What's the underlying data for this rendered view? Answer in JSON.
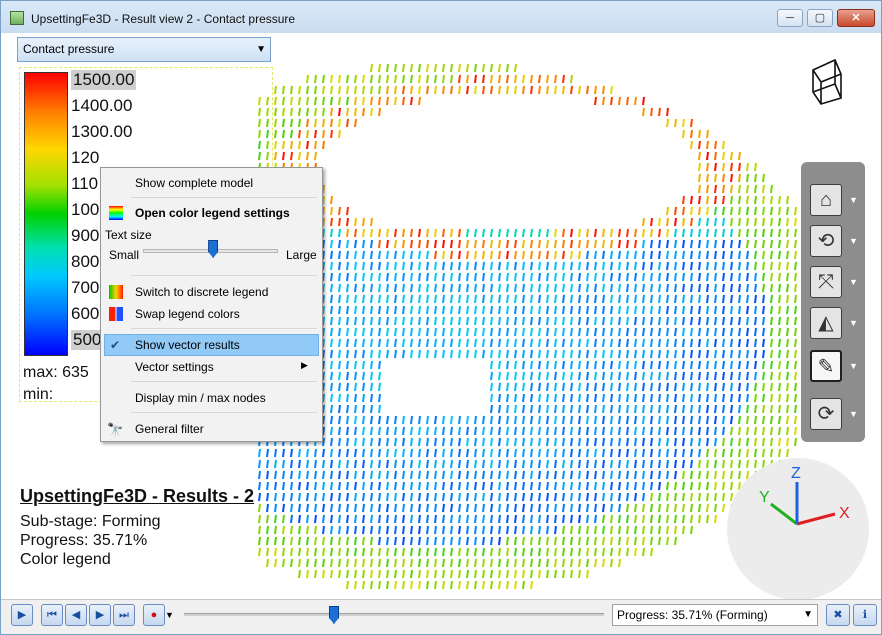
{
  "window": {
    "title": "UpsettingFe3D - Result view 2 - Contact pressure",
    "minimize_label": "─",
    "maximize_label": "▢",
    "close_label": "✕"
  },
  "result_selector": {
    "value": "Contact pressure"
  },
  "legend": {
    "ticks": [
      "1500.00",
      "1400.00",
      "1300.00",
      "120",
      "110",
      "100",
      "900",
      "800",
      "700",
      "600",
      "500"
    ],
    "max_label": "max: 635",
    "min_label": "min:",
    "colors": {
      "top": "#ff0000",
      "bottom": "#0000ff"
    }
  },
  "results_info": {
    "title": "UpsettingFe3D - Results - 2",
    "substage": "Sub-stage: Forming",
    "progress": "Progress: 35.71%",
    "legend_label": "Color legend"
  },
  "context_menu": {
    "items": {
      "show_complete_model": "Show complete model",
      "open_color_legend_settings": "Open color legend settings",
      "text_size": "Text size",
      "small": "Small",
      "large": "Large",
      "switch_discrete": "Switch to discrete legend",
      "swap_legend_colors": "Swap legend colors",
      "show_vector_results": "Show vector results",
      "vector_settings": "Vector settings",
      "display_min_max": "Display min / max nodes",
      "general_filter": "General filter"
    },
    "text_size_value": 0.52,
    "highlight_color": "#91c9f7"
  },
  "side_toolbar": {
    "buttons": [
      "home-icon",
      "rotate-view-icon",
      "fit-view-icon",
      "mirror-icon",
      "settings-wrench-icon",
      "sync-view-icon"
    ]
  },
  "axis_gizmo": {
    "x_label": "X",
    "y_label": "Y",
    "z_label": "Z",
    "colors": {
      "x": "#e02020",
      "y": "#20b020",
      "z": "#2060e0"
    }
  },
  "playback": {
    "progress_value": 0.3571,
    "progress_text": "Progress: 35.71% (Forming)"
  }
}
